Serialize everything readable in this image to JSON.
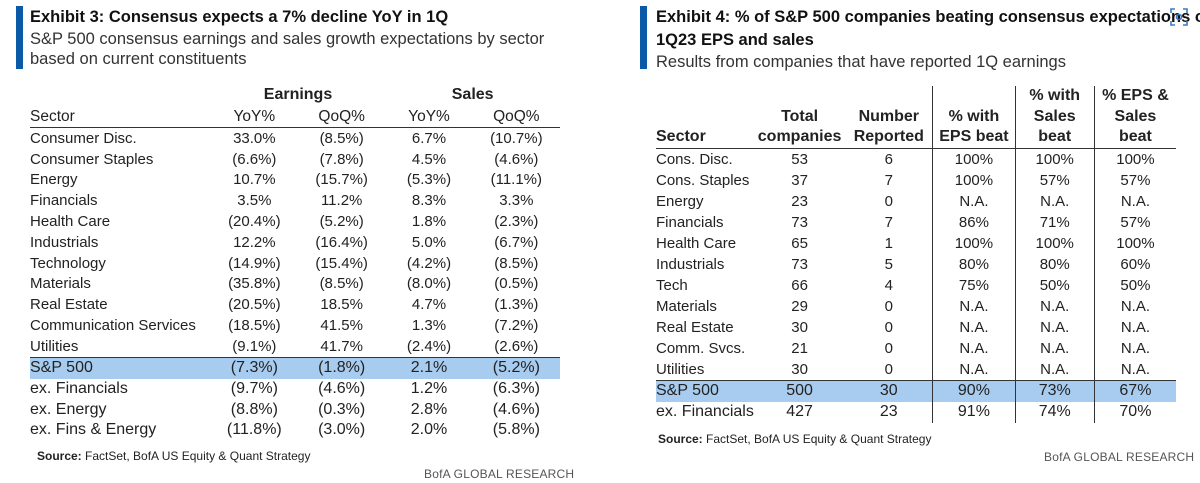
{
  "exhibit3": {
    "title": "Exhibit 3: Consensus expects a 7% decline YoY in 1Q",
    "subtitle": "S&P 500 consensus earnings and sales growth expectations by sector based on current constituents",
    "groups": {
      "earnings": "Earnings",
      "sales": "Sales"
    },
    "headers": [
      "Sector",
      "YoY%",
      "QoQ%",
      "YoY%",
      "QoQ%"
    ],
    "rows": [
      [
        "Consumer Disc.",
        "33.0%",
        "(8.5%)",
        "6.7%",
        "(10.7%)"
      ],
      [
        "Consumer Staples",
        "(6.6%)",
        "(7.8%)",
        "4.5%",
        "(4.6%)"
      ],
      [
        "Energy",
        "10.7%",
        "(15.7%)",
        "(5.3%)",
        "(11.1%)"
      ],
      [
        "Financials",
        "3.5%",
        "11.2%",
        "8.3%",
        "3.3%"
      ],
      [
        "Health Care",
        "(20.4%)",
        "(5.2%)",
        "1.8%",
        "(2.3%)"
      ],
      [
        "Industrials",
        "12.2%",
        "(16.4%)",
        "5.0%",
        "(6.7%)"
      ],
      [
        "Technology",
        "(14.9%)",
        "(15.4%)",
        "(4.2%)",
        "(8.5%)"
      ],
      [
        "Materials",
        "(35.8%)",
        "(8.5%)",
        "(8.0%)",
        "(0.5%)"
      ],
      [
        "Real Estate",
        "(20.5%)",
        "18.5%",
        "4.7%",
        "(1.3%)"
      ],
      [
        "Communication Services",
        "(18.5%)",
        "41.5%",
        "1.3%",
        "(7.2%)"
      ],
      [
        "Utilities",
        "(9.1%)",
        "41.7%",
        "(2.4%)",
        "(2.6%)"
      ]
    ],
    "total": [
      "S&P 500",
      "(7.3%)",
      "(1.8%)",
      "2.1%",
      "(5.2%)"
    ],
    "ex_rows": [
      [
        "ex. Financials",
        "(9.7%)",
        "(4.6%)",
        "1.2%",
        "(6.3%)"
      ],
      [
        "ex. Energy",
        "(8.8%)",
        "(0.3%)",
        "2.8%",
        "(4.6%)"
      ],
      [
        "ex. Fins & Energy",
        "(11.8%)",
        "(3.0%)",
        "2.0%",
        "(5.8%)"
      ]
    ],
    "source_label": "Source:",
    "source_text": "FactSet, BofA US Equity & Quant Strategy",
    "footer": "BofA GLOBAL RESEARCH"
  },
  "exhibit4": {
    "title": "Exhibit 4: % of S&P 500 companies beating consensus expectations on",
    "title_line2": "1Q23 EPS and sales",
    "subtitle": "Results from companies that have reported 1Q earnings",
    "headers": [
      [
        "",
        "",
        "Sector"
      ],
      [
        "",
        "Total",
        "companies"
      ],
      [
        "",
        "Number",
        "Reported"
      ],
      [
        "",
        "% with",
        "EPS beat"
      ],
      [
        "% with",
        "Sales",
        "beat"
      ],
      [
        "% EPS &",
        "Sales",
        "beat"
      ]
    ],
    "rows": [
      [
        "Cons. Disc.",
        "53",
        "6",
        "100%",
        "100%",
        "100%"
      ],
      [
        "Cons. Staples",
        "37",
        "7",
        "100%",
        "57%",
        "57%"
      ],
      [
        "Energy",
        "23",
        "0",
        "N.A.",
        "N.A.",
        "N.A."
      ],
      [
        "Financials",
        "73",
        "7",
        "86%",
        "71%",
        "57%"
      ],
      [
        "Health Care",
        "65",
        "1",
        "100%",
        "100%",
        "100%"
      ],
      [
        "Industrials",
        "73",
        "5",
        "80%",
        "80%",
        "60%"
      ],
      [
        "Tech",
        "66",
        "4",
        "75%",
        "50%",
        "50%"
      ],
      [
        "Materials",
        "29",
        "0",
        "N.A.",
        "N.A.",
        "N.A."
      ],
      [
        "Real Estate",
        "30",
        "0",
        "N.A.",
        "N.A.",
        "N.A."
      ],
      [
        "Comm. Svcs.",
        "21",
        "0",
        "N.A.",
        "N.A.",
        "N.A."
      ],
      [
        "Utilities",
        "30",
        "0",
        "N.A.",
        "N.A.",
        "N.A."
      ]
    ],
    "total": [
      "S&P 500",
      "500",
      "30",
      "90%",
      "73%",
      "67%"
    ],
    "ex_rows": [
      [
        "ex. Financials",
        "427",
        "23",
        "91%",
        "74%",
        "70%"
      ]
    ],
    "source_label": "Source:",
    "source_text": "FactSet, BofA US Equity & Quant Strategy",
    "footer": "BofA GLOBAL RESEARCH"
  },
  "colors": {
    "accent_bar": "#0a5aa8",
    "highlight_row": "#a8ccef"
  },
  "icons": {
    "focus": "focus-scan-icon"
  }
}
